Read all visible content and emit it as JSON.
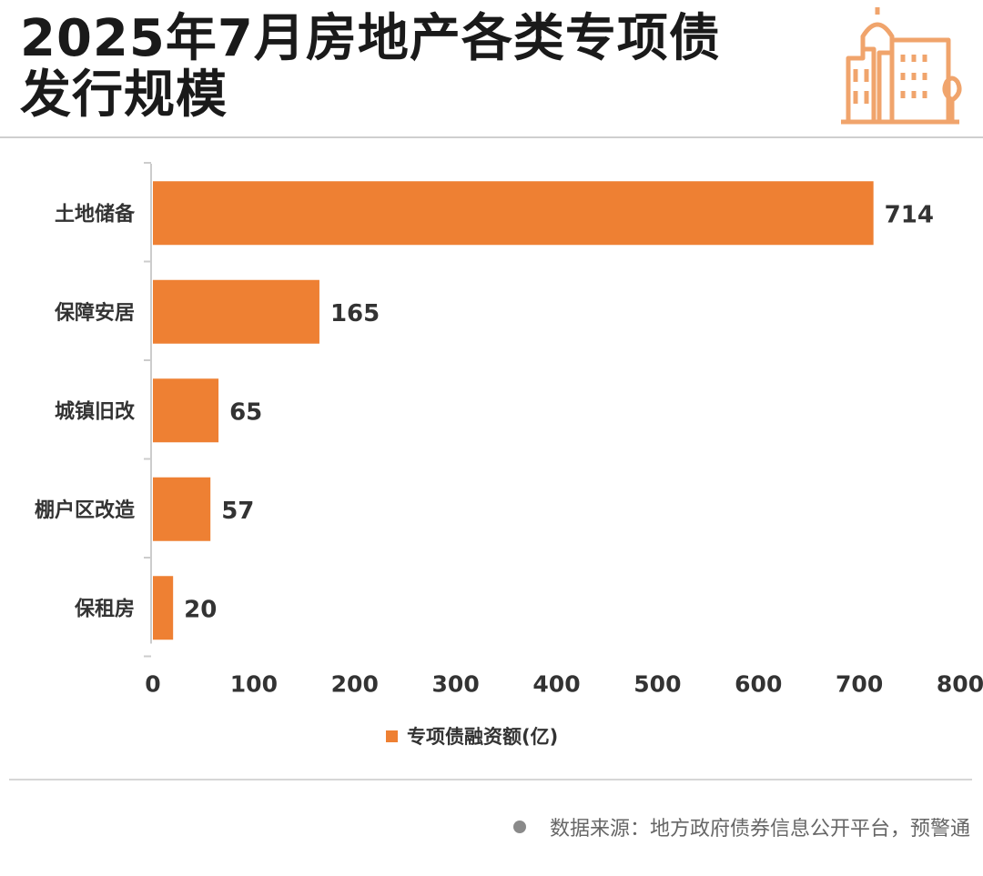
{
  "title_lines": [
    "2025年7月房地产各类专项债",
    "发行规模"
  ],
  "colors": {
    "bar": "#ee8033",
    "axis": "#cccccc",
    "icon": "#f0a46c",
    "text": "#333333"
  },
  "icons": [
    "building-icon",
    "legend-swatch-icon",
    "source-dot-icon"
  ],
  "chart_data": {
    "type": "bar",
    "orientation": "horizontal",
    "categories": [
      "土地储备",
      "保障安居",
      "城镇旧改",
      "棚户区改造",
      "保租房"
    ],
    "series": [
      {
        "name": "专项债融资额(亿)",
        "values": [
          714,
          165,
          65,
          57,
          20
        ]
      }
    ],
    "data_labels": [
      "714",
      "165",
      "65",
      "57",
      "20"
    ],
    "xlim": [
      0,
      800
    ],
    "x_ticks": [
      "0",
      "100",
      "200",
      "300",
      "400",
      "500",
      "600",
      "700",
      "800"
    ],
    "grid": false,
    "legend_position": "bottom"
  },
  "source": {
    "text": "数据来源：地方政府债券信息公开平台，预警通"
  }
}
